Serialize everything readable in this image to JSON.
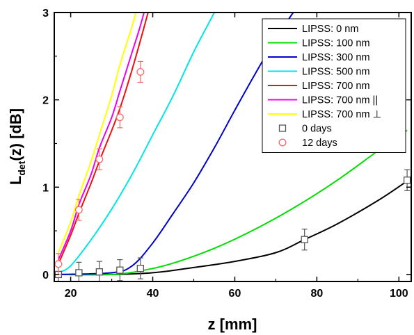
{
  "chart_data": {
    "type": "line",
    "xlabel": "z [mm]",
    "ylabel": {
      "main": "L",
      "sub": "det",
      "rest": "(z) [dB]"
    },
    "xlim": [
      16,
      103
    ],
    "ylim": [
      -0.08,
      3.0
    ],
    "xticks": [
      20,
      40,
      60,
      80,
      100
    ],
    "yticks": [
      0,
      1,
      2,
      3
    ],
    "grid": false,
    "legend_position": "top-right",
    "series": [
      {
        "name": "LIPSS: 0 nm",
        "color": "#000000",
        "x": [
          17,
          30,
          40,
          50,
          60,
          70,
          77,
          85,
          95,
          102
        ],
        "y": [
          0,
          0,
          0.02,
          0.08,
          0.15,
          0.25,
          0.4,
          0.58,
          0.85,
          1.07
        ]
      },
      {
        "name": "LIPSS: 100 nm",
        "color": "#00dd00",
        "x": [
          17,
          30,
          38,
          45,
          55,
          65,
          75,
          85,
          95,
          102
        ],
        "y": [
          0,
          0,
          0.05,
          0.13,
          0.3,
          0.52,
          0.78,
          1.08,
          1.42,
          1.65
        ]
      },
      {
        "name": "LIPSS: 300 nm",
        "color": "#0000cc",
        "x": [
          17,
          30,
          35,
          40,
          45,
          50,
          55,
          60,
          65,
          70,
          75,
          80
        ],
        "y": [
          0,
          0.02,
          0.1,
          0.36,
          0.7,
          1.05,
          1.45,
          1.88,
          2.3,
          2.7,
          3.05,
          3.35
        ]
      },
      {
        "name": "LIPSS: 500 nm",
        "color": "#00e5e5",
        "x": [
          17,
          20,
          25,
          30,
          35,
          40,
          45,
          50,
          55,
          57
        ],
        "y": [
          0.02,
          0.1,
          0.4,
          0.75,
          1.15,
          1.6,
          2.05,
          2.55,
          3.0,
          3.2
        ]
      },
      {
        "name": "LIPSS: 700 nm",
        "color": "#ee1111",
        "x": [
          17,
          20,
          22,
          25,
          27,
          30,
          32,
          35,
          38,
          40
        ],
        "y": [
          0.12,
          0.45,
          0.7,
          1.05,
          1.3,
          1.65,
          1.9,
          2.35,
          2.85,
          3.2
        ]
      },
      {
        "name": "LIPSS: 700 nm ||",
        "color": "#ee00ee",
        "x": [
          17,
          20,
          22,
          25,
          27,
          30,
          32,
          35,
          37,
          39
        ],
        "y": [
          0.17,
          0.5,
          0.8,
          1.15,
          1.45,
          1.8,
          2.1,
          2.55,
          2.85,
          3.2
        ]
      },
      {
        "name": "LIPSS: 700 nm ⊥",
        "color": "#ffff00",
        "x": [
          17,
          20,
          22,
          25,
          27,
          30,
          32,
          35,
          37
        ],
        "y": [
          0.25,
          0.6,
          0.9,
          1.3,
          1.6,
          2.05,
          2.4,
          2.85,
          3.2
        ]
      }
    ],
    "scatter": [
      {
        "name": "0 days",
        "color": "#555555",
        "marker": "square",
        "points": [
          {
            "x": 17,
            "y": 0.0,
            "err": 0.1
          },
          {
            "x": 22,
            "y": 0.02,
            "err": 0.12
          },
          {
            "x": 27,
            "y": 0.03,
            "err": 0.12
          },
          {
            "x": 32,
            "y": 0.05,
            "err": 0.12
          },
          {
            "x": 37,
            "y": 0.07,
            "err": 0.12
          },
          {
            "x": 77,
            "y": 0.4,
            "err": 0.12
          },
          {
            "x": 102,
            "y": 1.08,
            "err": 0.12
          }
        ]
      },
      {
        "name": "12 days",
        "color": "#ff6666",
        "marker": "circle",
        "points": [
          {
            "x": 17,
            "y": 0.12,
            "err": 0.12
          },
          {
            "x": 22,
            "y": 0.74,
            "err": 0.12
          },
          {
            "x": 27,
            "y": 1.32,
            "err": 0.12
          },
          {
            "x": 32,
            "y": 1.8,
            "err": 0.12
          },
          {
            "x": 37,
            "y": 2.32,
            "err": 0.12
          }
        ]
      }
    ]
  }
}
